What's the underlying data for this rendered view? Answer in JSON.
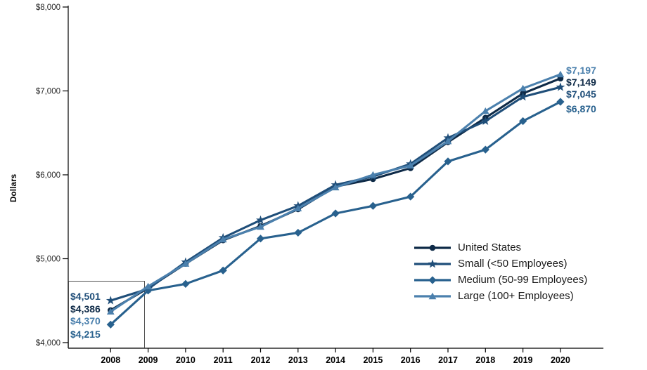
{
  "chart_data": {
    "type": "line",
    "title": "",
    "xlabel": "",
    "ylabel": "Dollars",
    "x": [
      2008,
      2009,
      2010,
      2011,
      2012,
      2013,
      2014,
      2015,
      2016,
      2017,
      2018,
      2019,
      2020
    ],
    "ylim": [
      4000,
      8000
    ],
    "ytick_step": 1000,
    "ytick_labels": [
      "$4,000",
      "$5,000",
      "$6,000",
      "$7,000",
      "$8,000"
    ],
    "grid": false,
    "legend_position": "inside-lower-right",
    "axis_color": "#000000",
    "series": [
      {
        "name": "United States",
        "marker": "circle",
        "color": "#0e2a47",
        "values": [
          4386,
          4650,
          4940,
          5220,
          5390,
          5590,
          5860,
          5950,
          6080,
          6390,
          6680,
          6970,
          7149
        ]
      },
      {
        "name": "Small (<50 Employees)",
        "marker": "star",
        "color": "#1f4e79",
        "values": [
          4501,
          4640,
          4960,
          5250,
          5460,
          5630,
          5880,
          5980,
          6130,
          6440,
          6640,
          6930,
          7045
        ]
      },
      {
        "name": "Medium (50-99 Employees)",
        "marker": "diamond",
        "color": "#28618e",
        "values": [
          4215,
          4620,
          4700,
          4860,
          5240,
          5310,
          5540,
          5630,
          5740,
          6160,
          6300,
          6640,
          6870
        ]
      },
      {
        "name": "Large (100+ Employees)",
        "marker": "triangle",
        "color": "#4b80ad",
        "values": [
          4370,
          4670,
          4940,
          5230,
          5380,
          5600,
          5850,
          6000,
          6110,
          6400,
          6760,
          7030,
          7197
        ]
      }
    ],
    "start_labels": [
      {
        "text": "$4,501",
        "series": 1
      },
      {
        "text": "$4,386",
        "series": 0
      },
      {
        "text": "$4,370",
        "series": 3
      },
      {
        "text": "$4,215",
        "series": 2
      }
    ],
    "end_labels": [
      {
        "text": "$7,197",
        "series": 3
      },
      {
        "text": "$7,149",
        "series": 0
      },
      {
        "text": "$7,045",
        "series": 1
      },
      {
        "text": "$6,870",
        "series": 2
      }
    ]
  }
}
